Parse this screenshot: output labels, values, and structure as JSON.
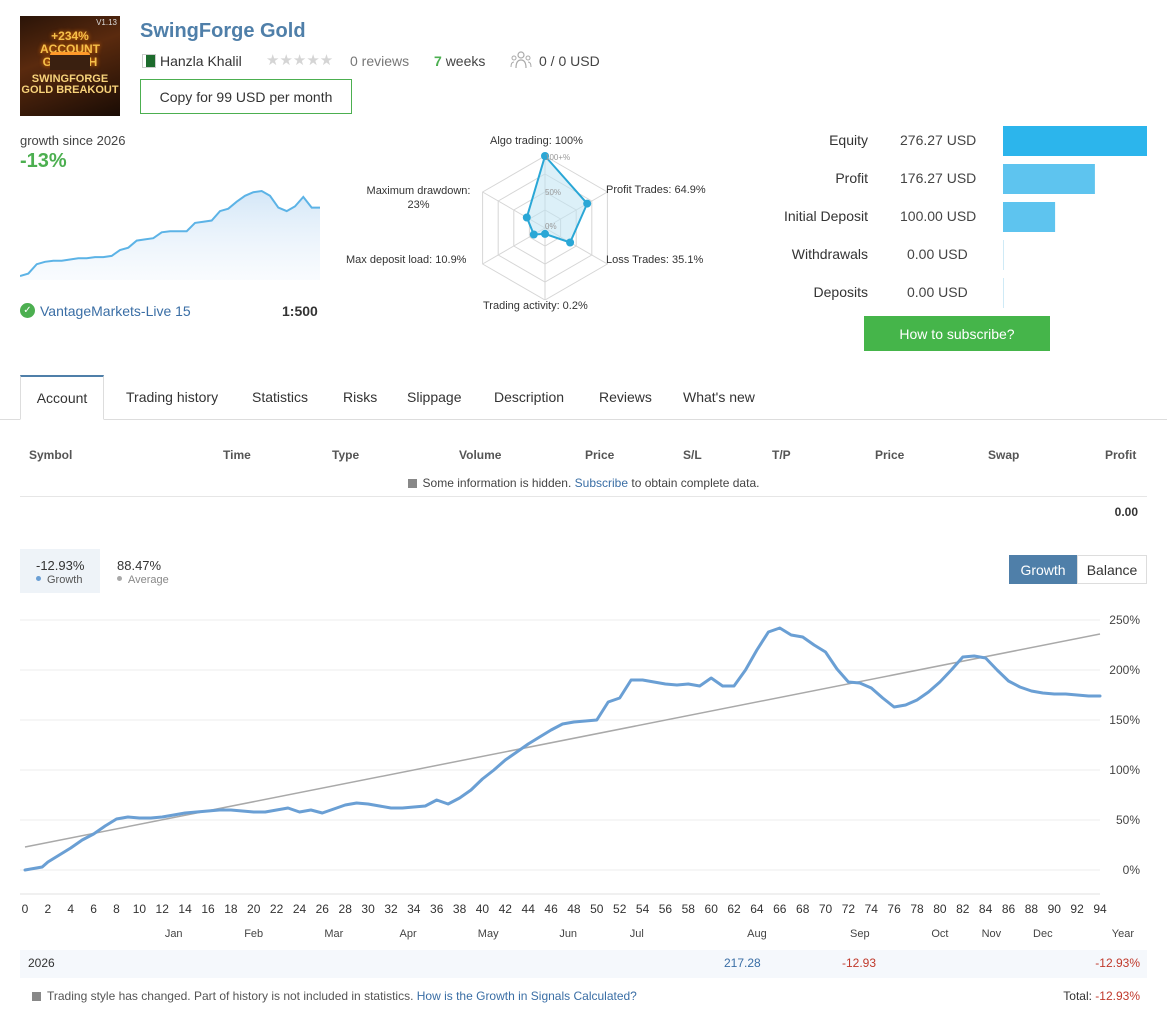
{
  "header": {
    "logo": {
      "top_text": "+234% ACCOUNT GROWTH",
      "bottom_text": "SWINGFORGE GOLD BREAKOUT",
      "version": "V1.13"
    },
    "title": "SwingForge Gold",
    "author": "Hanzla Khalil",
    "reviews": "0 reviews",
    "weeks_num": "7",
    "weeks_label": "weeks",
    "subscribers": "0 / 0 USD",
    "copy_button": "Copy for 99 USD per month"
  },
  "mini_growth": {
    "label": "growth since 2026",
    "value": "-13%",
    "broker": "VantageMarkets-Live 15",
    "leverage": "1:500",
    "chart_data": {
      "type": "area",
      "values": [
        0.0,
        0.02,
        0.1,
        0.12,
        0.13,
        0.13,
        0.14,
        0.15,
        0.15,
        0.16,
        0.16,
        0.17,
        0.22,
        0.24,
        0.3,
        0.31,
        0.32,
        0.37,
        0.38,
        0.38,
        0.38,
        0.45,
        0.46,
        0.47,
        0.55,
        0.57,
        0.63,
        0.68,
        0.71,
        0.72,
        0.68,
        0.58,
        0.55,
        0.59,
        0.67,
        0.58,
        0.58
      ]
    }
  },
  "radar": {
    "chart_data": {
      "type": "radar",
      "axes": [
        "Algo trading",
        "Profit Trades",
        "Loss Trades",
        "Trading activity",
        "Max deposit load",
        "Maximum drawdown"
      ],
      "values": [
        100,
        64.9,
        35.1,
        0.2,
        10.9,
        23
      ],
      "rings": [
        "100+%",
        "50%",
        "0%"
      ]
    },
    "labels": {
      "algo": "Algo trading: 100%",
      "profit": "Profit Trades: 64.9%",
      "loss": "Loss Trades: 35.1%",
      "activity": "Trading activity: 0.2%",
      "load": "Max deposit load: 10.9%",
      "drawdown_1": "Maximum drawdown:",
      "drawdown_2": "23%"
    },
    "ring_labels": {
      "r100": "100+%",
      "r50": "50%",
      "r0": "0%"
    }
  },
  "balance": {
    "chart_data": {
      "type": "bar",
      "categories": [
        "Equity",
        "Profit",
        "Initial Deposit",
        "Withdrawals",
        "Deposits"
      ],
      "values": [
        276.27,
        176.27,
        100.0,
        0.0,
        0.0
      ]
    },
    "rows": [
      {
        "label": "Equity",
        "value": "276.27 USD"
      },
      {
        "label": "Profit",
        "value": "176.27 USD"
      },
      {
        "label": "Initial Deposit",
        "value": "100.00 USD"
      },
      {
        "label": "Withdrawals",
        "value": "0.00 USD"
      },
      {
        "label": "Deposits",
        "value": "0.00 USD"
      }
    ],
    "subscribe_button": "How to subscribe?"
  },
  "tabs": [
    "Account",
    "Trading history",
    "Statistics",
    "Risks",
    "Slippage",
    "Description",
    "Reviews",
    "What's new"
  ],
  "table": {
    "headers": [
      "Symbol",
      "Time",
      "Type",
      "Volume",
      "Price",
      "S/L",
      "T/P",
      "Price",
      "Swap",
      "Profit"
    ],
    "hidden_note_pre": "Some information is hidden.",
    "hidden_note_link": "Subscribe",
    "hidden_note_post": "to obtain complete data.",
    "profit_total": "0.00"
  },
  "growth_stats": {
    "growth_value": "-12.93%",
    "growth_label": "Growth",
    "average_value": "88.47%",
    "average_label": "Average",
    "btn_growth": "Growth",
    "btn_balance": "Balance"
  },
  "colors": {
    "growth_line": "#6a9fd4",
    "average_line": "#a9a9a9",
    "accent_blue": "#4f7fa9",
    "bar": "#5ec4ef",
    "green": "#4caf50",
    "negative": "#c0392b"
  },
  "growth_chart": {
    "chart_data": {
      "type": "line",
      "xlim": [
        0,
        94
      ],
      "ylim": [
        -20,
        250
      ],
      "x_ticks": [
        0,
        2,
        4,
        6,
        8,
        10,
        12,
        14,
        16,
        18,
        20,
        22,
        24,
        26,
        28,
        30,
        32,
        34,
        36,
        38,
        40,
        42,
        44,
        46,
        48,
        50,
        52,
        54,
        56,
        58,
        60,
        62,
        64,
        66,
        68,
        70,
        72,
        74,
        76,
        78,
        80,
        82,
        84,
        86,
        88,
        90,
        92,
        94
      ],
      "y_ticks": [
        "0%",
        "50%",
        "100%",
        "150%",
        "200%",
        "250%"
      ],
      "y_tick_values": [
        0,
        50,
        100,
        150,
        200,
        250
      ],
      "months": [
        "Jan",
        "Feb",
        "Mar",
        "Apr",
        "May",
        "Jun",
        "Jul",
        "Aug",
        "Sep",
        "Oct",
        "Nov",
        "Dec",
        "Year"
      ],
      "month_positions": [
        13,
        20,
        27,
        33.5,
        40.5,
        47.5,
        53.5,
        64,
        73,
        80,
        84.5,
        89,
        96
      ],
      "series": [
        {
          "name": "Growth",
          "x": [
            0,
            1.5,
            2,
            3,
            4,
            5,
            6,
            7,
            8,
            9,
            10,
            11,
            12,
            13,
            14,
            15,
            16,
            17,
            18,
            19,
            20,
            21,
            22,
            23,
            24,
            25,
            26,
            27,
            28,
            29,
            30,
            31,
            32,
            33,
            34,
            35,
            36,
            37,
            38,
            39,
            40,
            41,
            42,
            43,
            44,
            45,
            46,
            47,
            48,
            49,
            50,
            51,
            52,
            53,
            54,
            55,
            56,
            57,
            58,
            59,
            60,
            61,
            62,
            63,
            64,
            65,
            66,
            67,
            68,
            69,
            70,
            71,
            72,
            73,
            74,
            75,
            76,
            77,
            78,
            79,
            80,
            81,
            82,
            83,
            84,
            85,
            86,
            87,
            88,
            89,
            90,
            91,
            92,
            93,
            94
          ],
          "y": [
            0,
            3,
            8,
            15,
            22,
            30,
            36,
            44,
            51,
            53,
            52,
            52,
            53,
            55,
            57,
            58,
            59,
            60,
            60,
            59,
            58,
            58,
            60,
            62,
            58,
            60,
            57,
            61,
            65,
            67,
            66,
            64,
            62,
            62,
            63,
            64,
            70,
            66,
            72,
            80,
            91,
            100,
            110,
            118,
            126,
            133,
            140,
            146,
            148,
            149,
            150,
            168,
            172,
            190,
            190,
            188,
            186,
            185,
            186,
            184,
            192,
            184,
            184,
            200,
            220,
            238,
            242,
            235,
            233,
            225,
            218,
            201,
            188,
            187,
            182,
            172,
            163,
            165,
            170,
            178,
            188,
            200,
            213,
            214,
            212,
            200,
            189,
            183,
            179,
            177,
            176,
            176,
            175,
            174,
            174
          ]
        },
        {
          "name": "Average",
          "x": [
            0,
            94
          ],
          "y": [
            23,
            236
          ]
        }
      ]
    }
  },
  "year_row": {
    "year": "2026",
    "aug": "217.28",
    "sep": "-12.93",
    "year_total": "-12.93%"
  },
  "footer": {
    "note_pre": "Trading style has changed. Part of history is not included in statistics.",
    "note_link": "How is the Growth in Signals Calculated?",
    "total_label": "Total:",
    "total_value": "-12.93%"
  }
}
